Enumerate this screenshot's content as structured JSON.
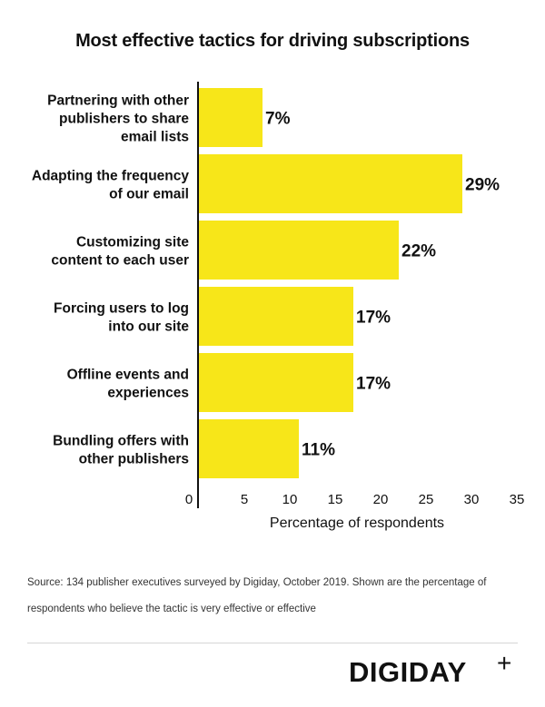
{
  "chart_data": {
    "type": "bar",
    "orientation": "horizontal",
    "title": "Most effective tactics for driving subscriptions",
    "categories": [
      [
        "Partnering with other",
        "publishers to share",
        "email lists"
      ],
      [
        "Adapting the frequency",
        "of our email"
      ],
      [
        "Customizing site",
        "content to each user"
      ],
      [
        "Forcing users to log",
        "into our site"
      ],
      [
        "Offline events and",
        "experiences"
      ],
      [
        "Bundling offers with",
        "other publishers"
      ]
    ],
    "values": [
      7,
      29,
      22,
      17,
      17,
      11
    ],
    "value_labels": [
      "7%",
      "29%",
      "22%",
      "17%",
      "17%",
      "11%"
    ],
    "xlabel": "Percentage of respondents",
    "ylabel": "",
    "xlim": [
      0,
      35
    ],
    "xticks": [
      0,
      5,
      10,
      15,
      20,
      25,
      30,
      35
    ],
    "bar_color": "#f7e619",
    "grid": false
  },
  "source_text": "Source: 134 publisher executives surveyed by Digiday, October 2019. Shown are the percentage of respondents who believe the tactic is very effective or effective",
  "logo": {
    "text": "DIGIDAY",
    "plus": "+"
  }
}
